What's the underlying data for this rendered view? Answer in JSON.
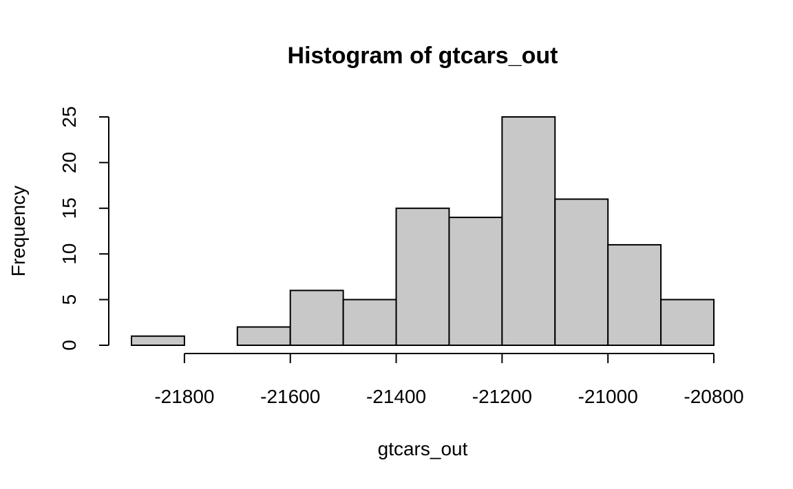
{
  "chart_data": {
    "type": "bar",
    "title": "Histogram of gtcars_out",
    "xlabel": "gtcars_out",
    "ylabel": "Frequency",
    "bins": [
      {
        "start": -21900,
        "end": -21800,
        "count": 1
      },
      {
        "start": -21800,
        "end": -21700,
        "count": 0
      },
      {
        "start": -21700,
        "end": -21600,
        "count": 2
      },
      {
        "start": -21600,
        "end": -21500,
        "count": 6
      },
      {
        "start": -21500,
        "end": -21400,
        "count": 5
      },
      {
        "start": -21400,
        "end": -21300,
        "count": 15
      },
      {
        "start": -21300,
        "end": -21200,
        "count": 14
      },
      {
        "start": -21200,
        "end": -21100,
        "count": 25
      },
      {
        "start": -21100,
        "end": -21000,
        "count": 16
      },
      {
        "start": -21000,
        "end": -20900,
        "count": 11
      },
      {
        "start": -20900,
        "end": -20800,
        "count": 5
      }
    ],
    "xlim": [
      -21900,
      -20800
    ],
    "ylim": [
      0,
      25
    ],
    "x_ticks": [
      -21800,
      -21600,
      -21400,
      -21200,
      -21000,
      -20800
    ],
    "y_ticks": [
      0,
      5,
      10,
      15,
      20,
      25
    ],
    "bar_color": "#c8c8c8",
    "grid": false,
    "legend": "none"
  }
}
